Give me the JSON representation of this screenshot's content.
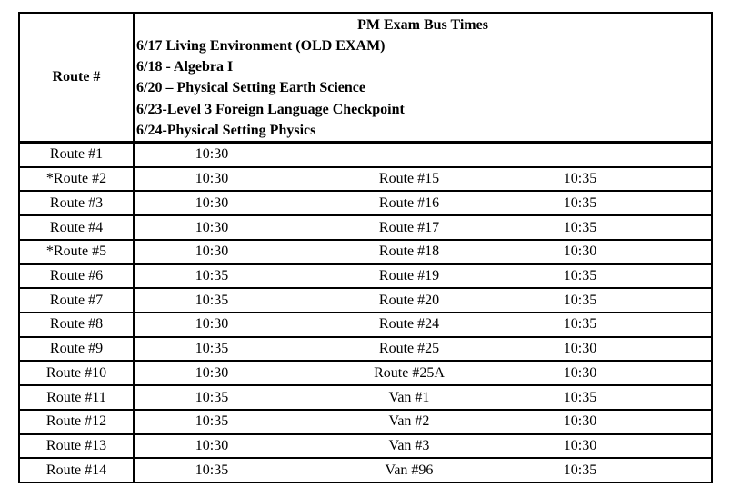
{
  "table": {
    "header": {
      "route_col_label": "Route #",
      "title": "PM Exam Bus Times",
      "exam_lines": [
        "6/17 Living Environment (OLD EXAM)",
        "6/18 - Algebra I",
        "6/20 – Physical Setting Earth Science",
        "6/23-Level 3 Foreign Language Checkpoint",
        "6/24-Physical Setting Physics"
      ]
    },
    "rows": [
      {
        "route1": "Route #1",
        "time1": "10:30",
        "route2": "",
        "time2": ""
      },
      {
        "route1": "*Route #2",
        "time1": "10:30",
        "route2": "Route #15",
        "time2": "10:35"
      },
      {
        "route1": "Route #3",
        "time1": "10:30",
        "route2": "Route #16",
        "time2": "10:35"
      },
      {
        "route1": "Route #4",
        "time1": "10:30",
        "route2": "Route #17",
        "time2": "10:35"
      },
      {
        "route1": "*Route #5",
        "time1": "10:30",
        "route2": "Route #18",
        "time2": "10:30"
      },
      {
        "route1": "Route #6",
        "time1": "10:35",
        "route2": "Route #19",
        "time2": "10:35"
      },
      {
        "route1": "Route #7",
        "time1": "10:35",
        "route2": "Route #20",
        "time2": "10:35"
      },
      {
        "route1": "Route #8",
        "time1": "10:30",
        "route2": "Route #24",
        "time2": "10:35"
      },
      {
        "route1": "Route #9",
        "time1": "10:35",
        "route2": "Route #25",
        "time2": "10:30"
      },
      {
        "route1": "Route #10",
        "time1": "10:30",
        "route2": "Route #25A",
        "time2": "10:30"
      },
      {
        "route1": "Route #11",
        "time1": "10:35",
        "route2": "Van #1",
        "time2": "10:35"
      },
      {
        "route1": "Route #12",
        "time1": "10:35",
        "route2": "Van #2",
        "time2": "10:30"
      },
      {
        "route1": "Route #13",
        "time1": "10:30",
        "route2": "Van #3",
        "time2": "10:30"
      },
      {
        "route1": "Route #14",
        "time1": "10:35",
        "route2": "Van #96",
        "time2": "10:35"
      }
    ],
    "colors": {
      "border": "#000000",
      "text": "#000000",
      "background": "#ffffff"
    }
  }
}
